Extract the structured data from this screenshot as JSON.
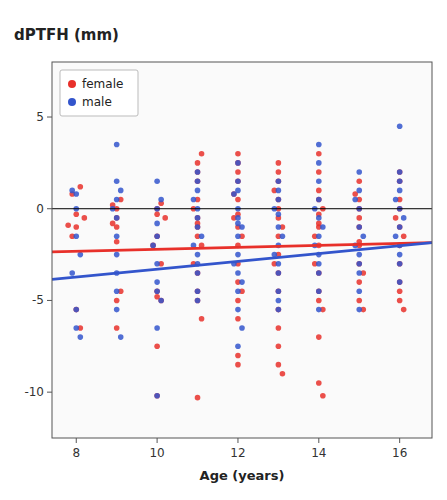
{
  "chart_data": {
    "type": "scatter",
    "title": "dPTFH (mm)",
    "x_label": "Age (years)",
    "xlim": [
      7.4,
      16.8
    ],
    "ylim": [
      -12.5,
      8.0
    ],
    "xticks": [
      8,
      10,
      12,
      14,
      16
    ],
    "yticks": [
      -10,
      -5,
      0,
      5
    ],
    "grid": false,
    "legend": "upper left",
    "hline": 0,
    "series": [
      {
        "name": "female",
        "color": "#E8302A",
        "marker": "circle",
        "x": [
          7.8,
          7.9,
          8.0,
          8.1,
          8.0,
          7.9,
          8.2,
          8.0,
          8.1,
          9.0,
          9.0,
          9.0,
          9.1,
          9.0,
          8.9,
          9.0,
          9.1,
          9.0,
          8.9,
          10.0,
          10.0,
          10.1,
          10.0,
          10.0,
          10.0,
          10.1,
          10.2,
          9.9,
          10.0,
          10.1,
          10.0,
          11.0,
          11.0,
          11.0,
          11.0,
          11.0,
          11.0,
          11.1,
          11.0,
          11.0,
          11.0,
          11.1,
          11.0,
          10.9,
          11.0,
          11.1,
          11.0,
          10.9,
          12.0,
          12.0,
          12.0,
          12.0,
          12.0,
          12.0,
          12.0,
          12.0,
          12.0,
          12.1,
          12.0,
          12.0,
          12.0,
          11.9,
          12.1,
          12.0,
          11.9,
          12.0,
          13.0,
          13.0,
          13.0,
          13.0,
          13.0,
          13.0,
          13.0,
          13.0,
          13.0,
          13.0,
          13.0,
          13.1,
          12.9,
          13.0,
          13.1,
          13.0,
          12.9,
          13.0,
          14.0,
          14.0,
          14.0,
          14.0,
          14.0,
          14.0,
          14.0,
          14.0,
          14.0,
          14.0,
          14.0,
          14.1,
          13.9,
          14.1,
          14.0,
          13.9,
          14.0,
          14.1,
          15.0,
          15.0,
          15.0,
          15.0,
          15.0,
          15.0,
          15.0,
          15.0,
          15.1,
          14.9,
          15.0,
          15.1,
          15.0,
          16.0,
          16.0,
          16.0,
          16.0,
          16.0,
          16.0,
          16.0,
          16.0,
          16.1,
          15.9,
          16.0,
          16.1,
          16.0
        ],
        "values": [
          -0.9,
          -1.5,
          -5.5,
          -6.5,
          -1.0,
          0.8,
          -0.5,
          -0.3,
          1.2,
          0.0,
          -0.5,
          -1.0,
          -4.5,
          -5.0,
          -0.8,
          -6.5,
          0.5,
          -1.8,
          0.2,
          -4.5,
          -4.8,
          -5.0,
          0.0,
          -1.5,
          -10.2,
          -3.0,
          -0.5,
          -2.0,
          -0.3,
          0.3,
          -7.5,
          2.5,
          2.0,
          1.5,
          0.5,
          -0.5,
          -1.0,
          -2.0,
          -3.5,
          -4.5,
          -5.0,
          -6.0,
          -10.3,
          0.0,
          -0.8,
          3.0,
          -1.5,
          -3.0,
          3.0,
          2.5,
          1.5,
          0.5,
          -0.3,
          -1.0,
          -2.0,
          -3.0,
          -4.0,
          -4.5,
          -5.0,
          -8.0,
          -8.5,
          0.8,
          -1.5,
          2.0,
          -0.5,
          -6.0,
          2.5,
          1.5,
          0.5,
          -0.5,
          -1.5,
          -2.5,
          -3.5,
          -4.5,
          -5.5,
          -7.5,
          -8.5,
          -9.0,
          1.0,
          0.0,
          -1.0,
          -6.5,
          -3.0,
          2.0,
          3.0,
          1.0,
          0.5,
          -0.3,
          -1.0,
          -2.0,
          -3.5,
          -4.5,
          -5.0,
          -7.0,
          -9.5,
          -10.2,
          -1.5,
          0.0,
          -0.8,
          -3.0,
          2.0,
          -5.5,
          1.5,
          0.5,
          -0.5,
          -1.0,
          -2.0,
          -3.0,
          -4.0,
          -5.0,
          -5.5,
          0.8,
          -1.8,
          -3.5,
          0.0,
          2.0,
          1.5,
          0.0,
          -1.0,
          -2.0,
          -3.0,
          -4.5,
          -5.0,
          -5.5,
          -0.5,
          0.5,
          -1.5,
          -4.0
        ]
      },
      {
        "name": "male",
        "color": "#3355CC",
        "marker": "circle",
        "x": [
          7.9,
          8.0,
          8.0,
          8.1,
          8.0,
          8.0,
          8.1,
          7.9,
          8.0,
          9.0,
          9.0,
          9.0,
          9.0,
          9.0,
          9.0,
          9.0,
          9.1,
          8.9,
          9.0,
          9.1,
          9.0,
          10.0,
          10.0,
          10.0,
          10.0,
          10.0,
          10.0,
          10.1,
          10.0,
          9.9,
          10.1,
          10.0,
          10.0,
          11.0,
          11.0,
          11.0,
          11.0,
          11.0,
          11.0,
          11.0,
          11.0,
          11.0,
          10.9,
          11.1,
          11.0,
          11.0,
          10.9,
          12.0,
          12.0,
          12.0,
          12.0,
          12.0,
          12.0,
          12.0,
          12.0,
          12.0,
          12.1,
          12.0,
          11.9,
          12.0,
          12.1,
          11.9,
          12.0,
          12.1,
          13.0,
          13.0,
          13.0,
          13.0,
          13.0,
          13.0,
          13.0,
          13.0,
          13.0,
          12.9,
          13.1,
          13.0,
          13.0,
          12.9,
          14.0,
          14.0,
          14.0,
          14.0,
          14.0,
          14.0,
          14.0,
          14.0,
          14.0,
          13.9,
          14.1,
          14.0,
          13.9,
          14.0,
          15.0,
          15.0,
          15.0,
          15.0,
          15.0,
          15.0,
          15.0,
          15.0,
          14.9,
          15.1,
          15.0,
          14.9,
          16.0,
          16.0,
          16.0,
          16.0,
          16.0,
          16.0,
          16.0,
          16.0,
          15.9,
          16.1,
          16.0,
          15.9,
          16.0
        ],
        "values": [
          1.0,
          0.8,
          -1.5,
          -2.5,
          -5.5,
          -6.5,
          -7.0,
          -3.5,
          0.0,
          3.5,
          1.5,
          0.5,
          -0.5,
          -2.5,
          -4.5,
          -5.5,
          -7.0,
          0.0,
          -1.5,
          1.0,
          -3.5,
          1.5,
          0.0,
          -1.5,
          -3.0,
          -4.0,
          -4.5,
          -5.0,
          -10.2,
          -2.0,
          0.5,
          -0.8,
          -6.5,
          2.0,
          1.0,
          0.0,
          -0.5,
          -1.0,
          -2.5,
          -3.5,
          -4.5,
          -5.0,
          0.5,
          -1.5,
          -3.0,
          1.5,
          -2.0,
          2.5,
          1.5,
          0.0,
          -0.5,
          -1.5,
          -2.5,
          -3.5,
          -4.5,
          -5.5,
          -6.5,
          -7.5,
          0.8,
          1.0,
          -1.0,
          -3.0,
          -0.8,
          -4.0,
          1.5,
          0.5,
          -0.3,
          -1.0,
          -2.0,
          -3.5,
          -4.5,
          -5.0,
          -5.5,
          0.0,
          -1.5,
          -3.0,
          1.0,
          -2.5,
          3.5,
          1.5,
          0.5,
          -0.5,
          -1.5,
          -2.5,
          -3.5,
          -4.5,
          -5.5,
          0.0,
          -1.0,
          -3.0,
          -2.0,
          2.5,
          2.0,
          1.0,
          0.0,
          -1.0,
          -2.5,
          -3.5,
          -4.5,
          -5.5,
          0.5,
          -1.5,
          -3.0,
          -2.0,
          4.5,
          2.0,
          1.0,
          0.0,
          -1.0,
          -2.0,
          -3.0,
          -4.0,
          0.5,
          -0.5,
          1.5,
          -1.5,
          -2.5
        ]
      },
      {
        "type": "line",
        "color": "#E8302A",
        "x": [
          7.4,
          16.8
        ],
        "values": [
          -2.35,
          -1.85
        ]
      },
      {
        "type": "line",
        "color": "#3355CC",
        "x": [
          7.4,
          16.8
        ],
        "values": [
          -3.85,
          -1.85
        ]
      }
    ]
  }
}
